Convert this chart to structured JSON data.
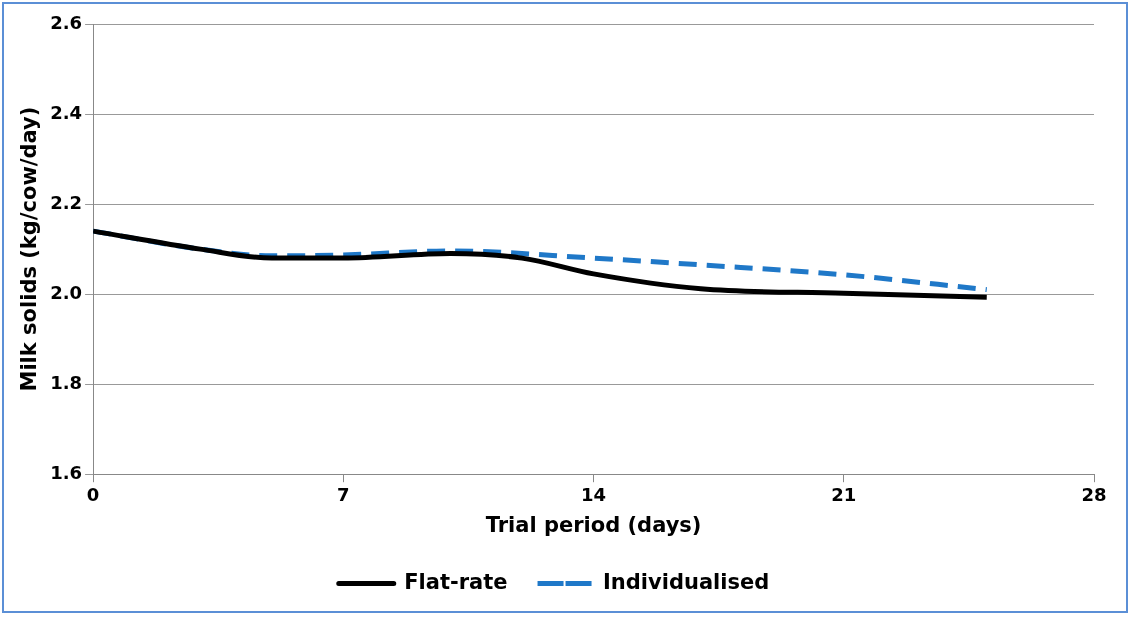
{
  "chart_data": {
    "type": "line",
    "xlabel": "Trial period (days)",
    "ylabel": "Milk solids (kg/cow/day)",
    "xlim": [
      0,
      28
    ],
    "xticks": [
      0,
      7,
      14,
      21,
      28
    ],
    "ylim": [
      1.6,
      2.6
    ],
    "yticks": [
      1.6,
      1.8,
      {
        "value": 2,
        "label": "2.0"
      },
      2.2,
      2.4,
      2.6
    ],
    "grid": "y",
    "legend": "bottom",
    "marker": "none",
    "series": [
      {
        "name": "Flat-rate",
        "color": "#000000",
        "line_style": "solid",
        "x": [
          0,
          3,
          5,
          7,
          10,
          12,
          14,
          17,
          21,
          25
        ],
        "values": [
          2.14,
          2.1,
          2.08,
          2.08,
          2.09,
          2.08,
          2.045,
          2.012,
          2.002,
          1.993
        ]
      },
      {
        "name": "Individualised",
        "color": "#1f78c8",
        "line_style": "dashed",
        "x": [
          0,
          3,
          5,
          7,
          10,
          14,
          17,
          21,
          25
        ],
        "values": [
          2.14,
          2.1,
          2.085,
          2.087,
          2.096,
          2.08,
          2.065,
          2.043,
          2.01
        ]
      }
    ]
  }
}
